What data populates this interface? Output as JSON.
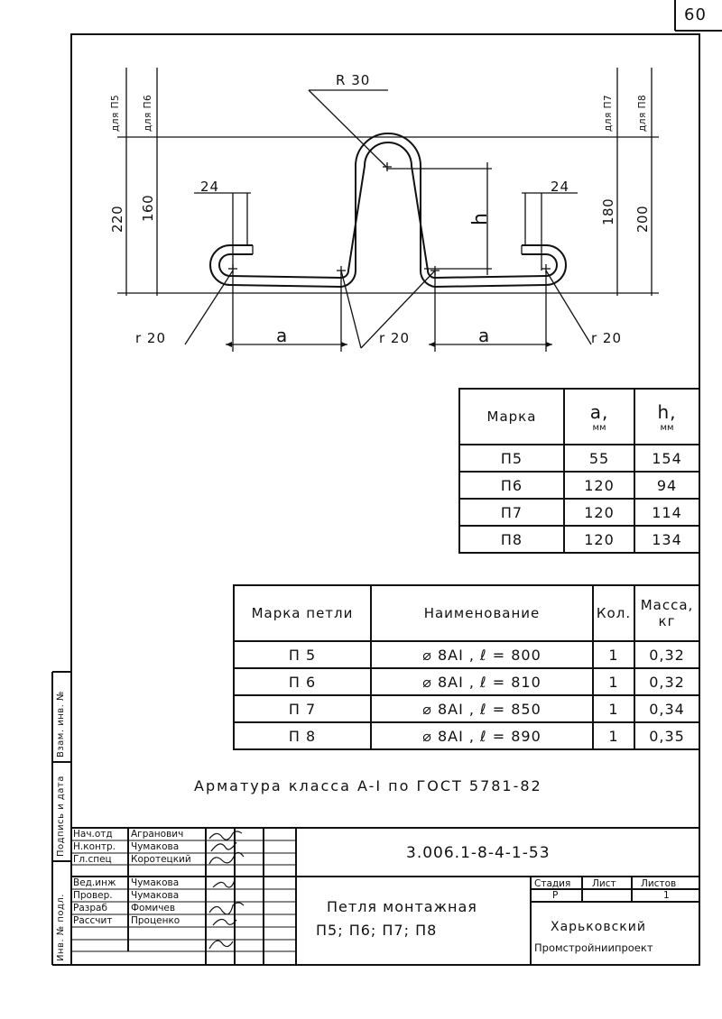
{
  "page_number": "60",
  "drawing": {
    "radius_top": "R 30",
    "for_p5": "для П5",
    "for_p6": "для П6",
    "for_p7": "для П7",
    "for_p8": "для П8",
    "dim_220": "220",
    "dim_160": "160",
    "dim_180": "180",
    "dim_200": "200",
    "dim_24_left": "24",
    "dim_24_right": "24",
    "dim_h": "h",
    "dim_a_left": "a",
    "dim_a_right": "a",
    "r20_left": "r 20",
    "r20_mid": "r 20",
    "r20_right": "r 20"
  },
  "dims_table": {
    "headers": [
      "Марка",
      "a,",
      "мм",
      "h,",
      "мм"
    ],
    "rows": [
      {
        "mark": "П5",
        "a": "55",
        "h": "154"
      },
      {
        "mark": "П6",
        "a": "120",
        "h": "94"
      },
      {
        "mark": "П7",
        "a": "120",
        "h": "114"
      },
      {
        "mark": "П8",
        "a": "120",
        "h": "134"
      }
    ]
  },
  "spec_table": {
    "headers": [
      "Марка петли",
      "Наименование",
      "Кол.",
      "Масса,",
      "кг"
    ],
    "rows": [
      {
        "mark": "П 5",
        "name": "⌀ 8AI , ℓ = 800",
        "qty": "1",
        "mass": "0,32"
      },
      {
        "mark": "П 6",
        "name": "⌀ 8AI , ℓ = 810",
        "qty": "1",
        "mass": "0,32"
      },
      {
        "mark": "П 7",
        "name": "⌀ 8AI , ℓ = 850",
        "qty": "1",
        "mass": "0,34"
      },
      {
        "mark": "П 8",
        "name": "⌀ 8AI , ℓ = 890",
        "qty": "1",
        "mass": "0,35"
      }
    ]
  },
  "note": "Арматура класса A-I по ГОСТ 5781-82",
  "side_labels": {
    "inv_orig": "Инв. № подл.",
    "sign_date": "Подпись и дата",
    "vzam_inv": "Взам. инв. №"
  },
  "title_block": {
    "roles": [
      "Нач.отд",
      "Н.контр.",
      "Гл.спец",
      "Вед.инж",
      "Провер.",
      "Разраб",
      "Рассчит"
    ],
    "names": [
      "Агранович",
      "Чумакова",
      "Коротецкий",
      "Чумакова",
      "Чумакова",
      "Фомичев",
      "Проценко"
    ],
    "doc_code": "3.006.1-8-4-1-53",
    "title_line1": "Петля монтажная",
    "title_line2": "П5; П6; П7; П8",
    "stage_label": "Стадия",
    "sheet_label": "Лист",
    "sheets_label": "Листов",
    "stage_value": "Р",
    "sheets_value": "1",
    "org_line1": "Харьковский",
    "org_line2": "Промстройниипроект"
  }
}
